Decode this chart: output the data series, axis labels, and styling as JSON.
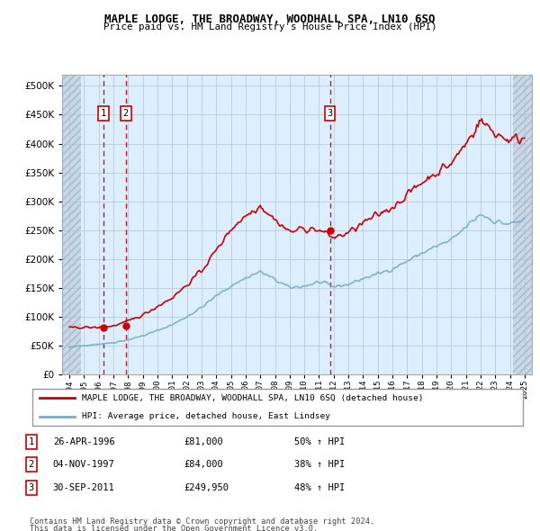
{
  "title": "MAPLE LODGE, THE BROADWAY, WOODHALL SPA, LN10 6SQ",
  "subtitle": "Price paid vs. HM Land Registry's House Price Index (HPI)",
  "ylim": [
    0,
    520000
  ],
  "yticks": [
    0,
    50000,
    100000,
    150000,
    200000,
    250000,
    300000,
    350000,
    400000,
    450000,
    500000
  ],
  "ytick_labels": [
    "£0",
    "£50K",
    "£100K",
    "£150K",
    "£200K",
    "£250K",
    "£300K",
    "£350K",
    "£400K",
    "£450K",
    "£500K"
  ],
  "xmin": 1993.5,
  "xmax": 2025.5,
  "sale_dates": [
    1996.32,
    1997.84,
    2011.75
  ],
  "sale_prices": [
    81000,
    84000,
    249950
  ],
  "sale_labels": [
    "1",
    "2",
    "3"
  ],
  "legend_red": "MAPLE LODGE, THE BROADWAY, WOODHALL SPA, LN10 6SQ (detached house)",
  "legend_blue": "HPI: Average price, detached house, East Lindsey",
  "table_rows": [
    [
      "1",
      "26-APR-1996",
      "£81,000",
      "50% ↑ HPI"
    ],
    [
      "2",
      "04-NOV-1997",
      "£84,000",
      "38% ↑ HPI"
    ],
    [
      "3",
      "30-SEP-2011",
      "£249,950",
      "48% ↑ HPI"
    ]
  ],
  "footer1": "Contains HM Land Registry data © Crown copyright and database right 2024.",
  "footer2": "This data is licensed under the Open Government Licence v3.0.",
  "red_color": "#cc0000",
  "blue_color": "#7aaaca",
  "bg_plot": "#ddeeff",
  "bg_hatch": "#c8d8e8",
  "grid_color": "#b8ccd8",
  "hatch_color": "#a8b8c8"
}
